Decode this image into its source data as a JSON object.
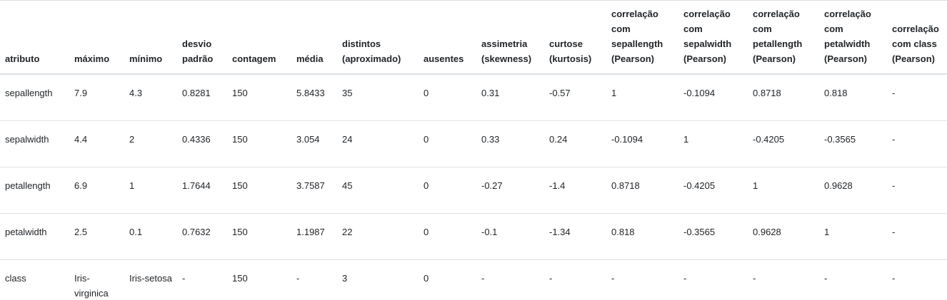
{
  "table": {
    "headers": [
      "atributo",
      "máximo",
      "mínimo",
      "desvio padrão",
      "contagem",
      "média",
      "distintos (aproximado)",
      "ausentes",
      "assimetria (skewness)",
      "curtose (kurtosis)",
      "correlação com sepallength (Pearson)",
      "correlação com sepalwidth (Pearson)",
      "correlação com petallength (Pearson)",
      "correlação com petalwidth (Pearson)",
      "correlação com class (Pearson)"
    ],
    "rows": [
      [
        "sepallength",
        "7.9",
        "4.3",
        "0.8281",
        "150",
        "5.8433",
        "35",
        "0",
        "0.31",
        "-0.57",
        "1",
        "-0.1094",
        "0.8718",
        "0.818",
        "-"
      ],
      [
        "sepalwidth",
        "4.4",
        "2",
        "0.4336",
        "150",
        "3.054",
        "24",
        "0",
        "0.33",
        "0.24",
        "-0.1094",
        "1",
        "-0.4205",
        "-0.3565",
        "-"
      ],
      [
        "petallength",
        "6.9",
        "1",
        "1.7644",
        "150",
        "3.7587",
        "45",
        "0",
        "-0.27",
        "-1.4",
        "0.8718",
        "-0.4205",
        "1",
        "0.9628",
        "-"
      ],
      [
        "petalwidth",
        "2.5",
        "0.1",
        "0.7632",
        "150",
        "1.1987",
        "22",
        "0",
        "-0.1",
        "-1.34",
        "0.818",
        "-0.3565",
        "0.9628",
        "1",
        "-"
      ],
      [
        "class",
        "Iris-virginica",
        "Iris-setosa",
        "-",
        "150",
        "-",
        "3",
        "0",
        "-",
        "-",
        "-",
        "-",
        "-",
        "-",
        "-"
      ]
    ]
  }
}
